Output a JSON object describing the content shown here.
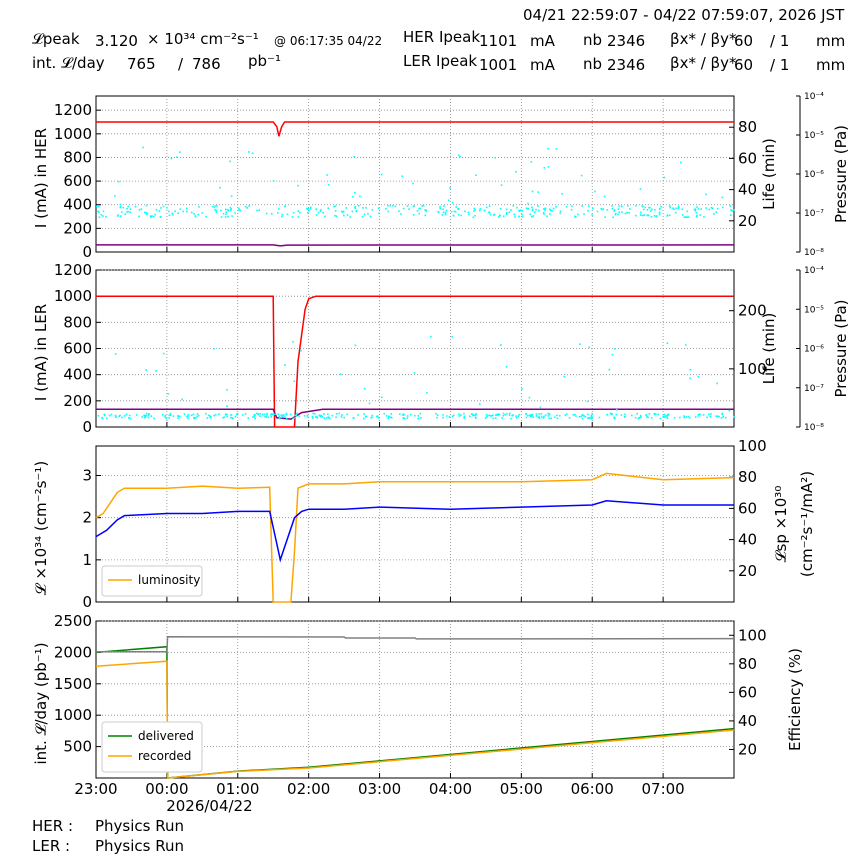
{
  "header": {
    "time_range": "04/21 22:59:07 - 04/22 07:59:07, 2026 JST",
    "lpeak_label": "𝓛peak",
    "lpeak_value": "3.120",
    "lpeak_unit": "× 10³⁴ cm⁻²s⁻¹",
    "lpeak_time": "@ 06:17:35 04/22",
    "intl_label": "int. 𝓛/day",
    "intl_value": "765",
    "intl_sep": "/",
    "intl_total": "786",
    "intl_unit": "pb⁻¹",
    "her_label": "HER Ipeak",
    "her_value": "1101",
    "her_unit": "mA",
    "ler_label": "LER Ipeak",
    "ler_value": "1001",
    "ler_unit": "mA",
    "nb_label": "nb",
    "her_nb": "2346",
    "ler_nb": "2346",
    "beta_label": "βx* / βy*",
    "her_beta": "60",
    "her_beta2": "/ 1",
    "ler_beta": "60",
    "ler_beta2": "/ 1",
    "beta_unit": "mm"
  },
  "footer": {
    "her_label": "HER :",
    "her_status": "Physics Run",
    "ler_label": "LER :",
    "ler_status": "Physics Run"
  },
  "chart_data": [
    {
      "type": "line",
      "panel": "HER",
      "ylabel": "I (mA) in HER",
      "ylim": [
        0,
        1320
      ],
      "yticks": [
        0,
        200,
        400,
        600,
        800,
        1000,
        1200
      ],
      "y2label": "Life (min)",
      "y2ticks": [
        20,
        40,
        60,
        80
      ],
      "y3label": "Pressure (Pa)",
      "y3ticks": [
        "10⁻⁴",
        "10⁻⁵",
        "10⁻⁶",
        "10⁻⁷",
        "10⁻⁸"
      ],
      "series": [
        {
          "color": "#ff0000",
          "x": [
            0,
            2.5,
            2.55,
            2.58,
            2.62,
            2.66,
            9
          ],
          "y": [
            1100,
            1100,
            1060,
            980,
            1060,
            1100,
            1100
          ]
        },
        {
          "color": "#800080",
          "x": [
            0,
            2.5,
            2.6,
            2.7,
            9
          ],
          "y": [
            60,
            60,
            52,
            58,
            60
          ]
        },
        {
          "color": "#00ffff",
          "scatter": true,
          "base": 350,
          "spread": 100,
          "outlier_max": 900
        }
      ],
      "grid": true
    },
    {
      "type": "line",
      "panel": "LER",
      "ylabel": "I (mA) in LER",
      "ylim": [
        0,
        1200
      ],
      "yticks": [
        0,
        200,
        400,
        600,
        800,
        1000,
        1200
      ],
      "y2label": "Life (min)",
      "y2ticks": [
        100,
        200
      ],
      "y3label": "Pressure (Pa)",
      "y3ticks": [
        "10⁻⁴",
        "10⁻⁵",
        "10⁻⁶",
        "10⁻⁷",
        "10⁻⁸"
      ],
      "series": [
        {
          "color": "#ff0000",
          "x": [
            0,
            2.5,
            2.52,
            2.8,
            2.85,
            2.95,
            3.0,
            3.1,
            9
          ],
          "y": [
            1000,
            1000,
            0,
            0,
            500,
            900,
            980,
            1000,
            1000
          ]
        },
        {
          "color": "#800080",
          "x": [
            0,
            2.5,
            2.55,
            2.75,
            2.9,
            3.2,
            9
          ],
          "y": [
            135,
            135,
            70,
            60,
            110,
            135,
            135
          ]
        },
        {
          "color": "#00ffff",
          "scatter": true,
          "base": 90,
          "spread": 40,
          "outlier_max": 700
        }
      ],
      "grid": true
    },
    {
      "type": "line",
      "panel": "luminosity",
      "ylabel": "𝓛 ×10³⁴ (cm⁻²s⁻¹)",
      "ylim": [
        0,
        3.7
      ],
      "yticks": [
        0,
        1,
        2,
        3
      ],
      "y2label": "𝓛sp ×10³⁰ (cm⁻²s⁻¹/mA²)",
      "y2ticks": [
        20,
        40,
        60,
        80,
        100
      ],
      "legend": [
        "luminosity"
      ],
      "legend_position": "bottom-left",
      "series": [
        {
          "name": "luminosity",
          "color": "#ffa500",
          "x": [
            0,
            0.1,
            0.3,
            0.4,
            1.0,
            1.5,
            2.0,
            2.45,
            2.5,
            2.55,
            2.65,
            2.75,
            2.8,
            2.85,
            3.0,
            3.5,
            4.0,
            5.0,
            6.0,
            7.0,
            7.2,
            8.0,
            9.0
          ],
          "y": [
            2.0,
            2.1,
            2.6,
            2.7,
            2.7,
            2.75,
            2.7,
            2.72,
            0,
            0,
            0,
            0,
            1.2,
            2.7,
            2.8,
            2.8,
            2.85,
            2.85,
            2.85,
            2.9,
            3.05,
            2.9,
            2.95
          ]
        },
        {
          "color": "#0000ff",
          "x": [
            0,
            0.15,
            0.3,
            0.4,
            1.0,
            1.5,
            2.0,
            2.45,
            2.6,
            2.7,
            2.8,
            2.9,
            3.0,
            3.5,
            4.0,
            5.0,
            6.0,
            7.0,
            7.2,
            8.0,
            9.0
          ],
          "y": [
            1.55,
            1.7,
            1.95,
            2.05,
            2.1,
            2.1,
            2.15,
            2.15,
            1.0,
            1.5,
            2.0,
            2.15,
            2.2,
            2.2,
            2.25,
            2.2,
            2.25,
            2.3,
            2.4,
            2.3,
            2.3
          ]
        }
      ],
      "grid": true
    },
    {
      "type": "line",
      "panel": "integrated",
      "ylabel": "int. 𝓛/day (pb⁻¹)",
      "ylim": [
        0,
        2500
      ],
      "yticks": [
        500,
        1000,
        1500,
        2000,
        2500
      ],
      "y2label": "Efficiency (%)",
      "y2ticks": [
        20,
        40,
        60,
        80,
        100
      ],
      "legend": [
        "delivered",
        "recorded"
      ],
      "legend_position": "bottom-left",
      "series": [
        {
          "name": "delivered",
          "color": "#008000",
          "x": [
            0,
            1.0,
            1.01,
            2.0,
            3.0,
            9.0
          ],
          "y": [
            2000,
            2090,
            0,
            110,
            170,
            786
          ]
        },
        {
          "name": "recorded",
          "color": "#ffa500",
          "x": [
            0,
            1.0,
            1.01,
            2.0,
            3.0,
            9.0
          ],
          "y": [
            1780,
            1860,
            0,
            105,
            160,
            765
          ]
        },
        {
          "color": "#808080",
          "x": [
            0,
            1.0,
            1.01,
            3.5,
            3.52,
            4.5,
            4.52,
            9.0
          ],
          "y": [
            2010,
            2010,
            2250,
            2245,
            2230,
            2230,
            2215,
            2220
          ]
        }
      ],
      "grid": true
    }
  ],
  "xaxis": {
    "ticks": [
      "23:00",
      "00:00",
      "01:00",
      "02:00",
      "03:00",
      "04:00",
      "05:00",
      "06:00",
      "07:00"
    ],
    "date_label": "2026/04/22"
  }
}
